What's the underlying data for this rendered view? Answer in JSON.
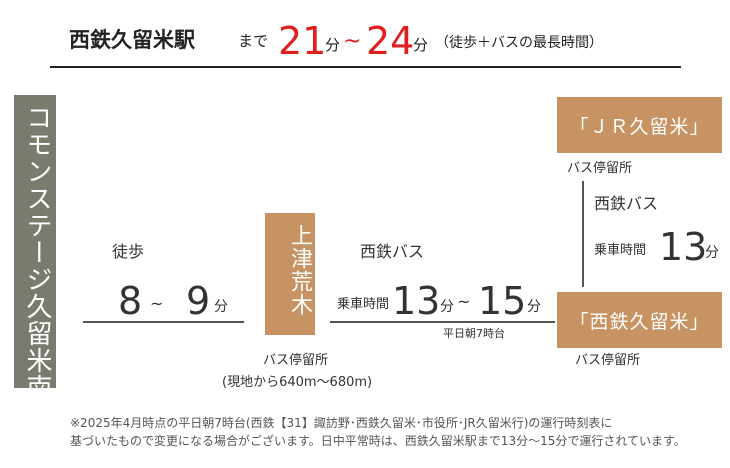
{
  "header": {
    "destination": "西鉄久留米駅",
    "made": "まで",
    "min_time": "21",
    "min_unit": "分",
    "tilde": "~",
    "max_time": "24",
    "max_unit": "分",
    "note": "（徒歩＋バスの最長時間）"
  },
  "origin": {
    "name": "コモンステージ久留米南"
  },
  "walk": {
    "label": "徒歩",
    "min": "8",
    "tilde": "~",
    "max": "9",
    "unit": "分"
  },
  "stop_kamitsu": {
    "name": "上津荒木",
    "type": "バス停留所",
    "distance": "(現地から640m〜680m)"
  },
  "bus1": {
    "label": "西鉄バス",
    "ride_label": "乗車時間",
    "min": "13",
    "unit1": "分",
    "tilde": "~",
    "max": "15",
    "unit2": "分",
    "note": "平日朝7時台"
  },
  "stop_jr": {
    "name": "「ＪＲ久留米」",
    "type": "バス停留所"
  },
  "bus2": {
    "label": "西鉄バス",
    "ride_label": "乗車時間",
    "time": "13",
    "unit": "分"
  },
  "stop_nishitetsu": {
    "name": "「西鉄久留米」",
    "type": "バス停留所"
  },
  "footnote": {
    "line1": "※2025年4月時点の平日朝7時台(西鉄【31】諏訪野･西鉄久留米･市役所･JR久留米行)の運行時刻表に",
    "line2": "基づいたもので変更になる場合がございます。日中平常時は、西鉄久留米駅まで13分～15分で運行されています。"
  },
  "colors": {
    "accent_red": "#e01e1e",
    "box_brown": "#c79363",
    "box_gray": "#7a7a6e"
  }
}
